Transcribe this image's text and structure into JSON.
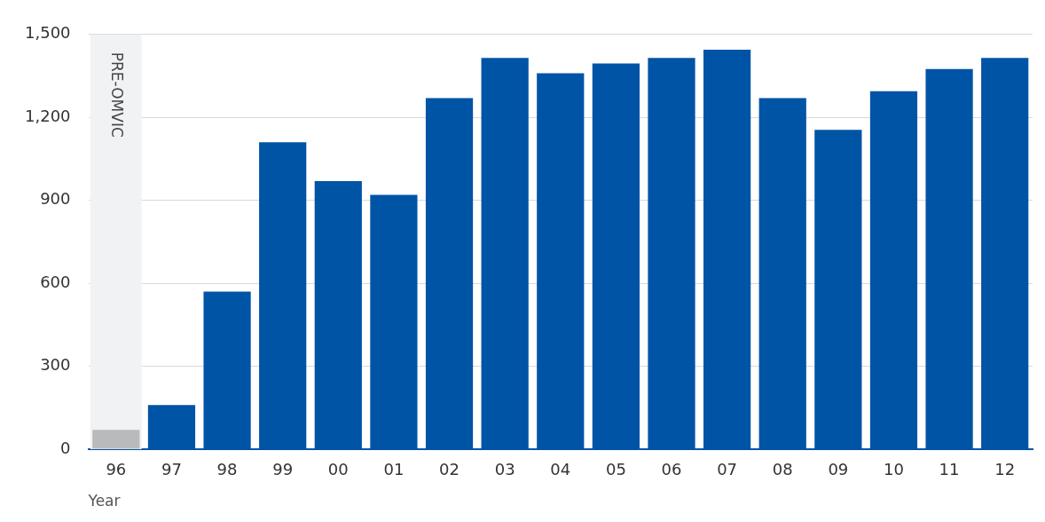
{
  "chart_data": {
    "type": "bar",
    "xlabel": "Year",
    "categories": [
      "96",
      "97",
      "98",
      "99",
      "00",
      "01",
      "02",
      "03",
      "04",
      "05",
      "06",
      "07",
      "08",
      "09",
      "10",
      "11",
      "12"
    ],
    "values": [
      70,
      160,
      570,
      1110,
      970,
      920,
      1270,
      1415,
      1360,
      1395,
      1415,
      1445,
      1270,
      1155,
      1295,
      1375,
      1415
    ],
    "colors": [
      "#b9babc",
      "#0054a6",
      "#0054a6",
      "#0054a6",
      "#0054a6",
      "#0054a6",
      "#0054a6",
      "#0054a6",
      "#0054a6",
      "#0054a6",
      "#0054a6",
      "#0054a6",
      "#0054a6",
      "#0054a6",
      "#0054a6",
      "#0054a6",
      "#0054a6"
    ],
    "ylim": [
      0,
      1500
    ],
    "yticks": [
      0,
      300,
      600,
      900,
      {
        "value": 1200,
        "label": "1,200"
      },
      {
        "value": 1500,
        "label": "1,500"
      }
    ],
    "grid": "y",
    "legend": false,
    "bands": [
      {
        "axis": "x",
        "from": "96",
        "to": "96",
        "label": "PRE-OMVIC",
        "color": "#f1f2f4"
      }
    ]
  }
}
